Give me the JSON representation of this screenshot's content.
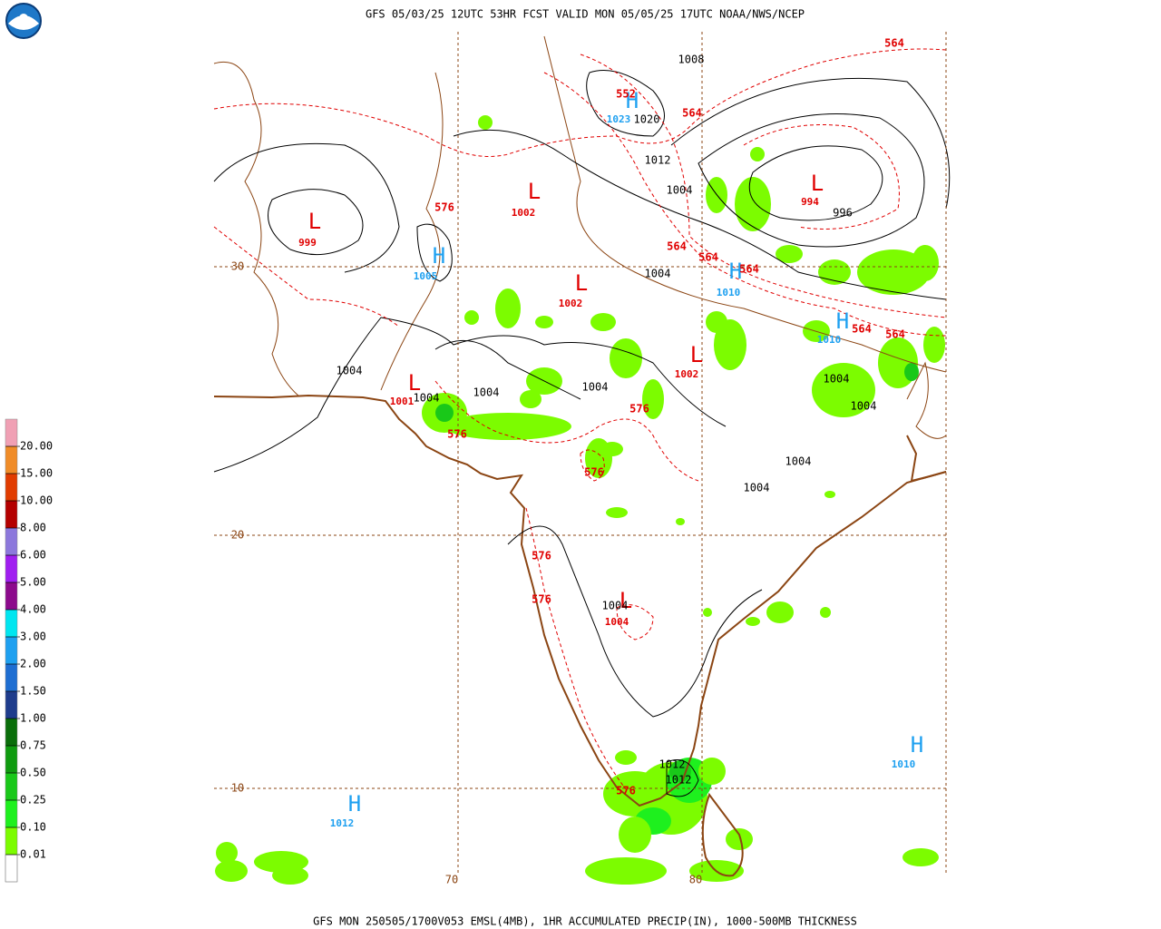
{
  "header": {
    "title": "GFS 05/03/25 12UTC 53HR FCST VALID MON 05/05/25 17UTC NOAA/NWS/NCEP"
  },
  "footer": {
    "caption": "GFS MON 250505/1700V053 EMSL(4MB), 1HR ACCUMULATED PRECIP(IN), 1000-500MB THICKNESS"
  },
  "legend": {
    "base_color": "#ffffff",
    "bins": [
      {
        "label": "0.01",
        "color": "#7cfc00"
      },
      {
        "label": "0.10",
        "color": "#1ef01e"
      },
      {
        "label": "0.25",
        "color": "#19c819"
      },
      {
        "label": "0.50",
        "color": "#0f9b0f"
      },
      {
        "label": "0.75",
        "color": "#0a6e0a"
      },
      {
        "label": "1.00",
        "color": "#1e3c8c"
      },
      {
        "label": "1.50",
        "color": "#1e6ed2"
      },
      {
        "label": "2.00",
        "color": "#1ea0f0"
      },
      {
        "label": "3.00",
        "color": "#00e6f0"
      },
      {
        "label": "4.00",
        "color": "#8c0a8c"
      },
      {
        "label": "5.00",
        "color": "#a01ef0"
      },
      {
        "label": "6.00",
        "color": "#8c78dc"
      },
      {
        "label": "8.00",
        "color": "#b40000"
      },
      {
        "label": "10.00",
        "color": "#e13c00"
      },
      {
        "label": "15.00",
        "color": "#f08c28"
      },
      {
        "label": "20.00",
        "color": "#f0a0b4"
      }
    ]
  },
  "grid": {
    "latitudes": [
      "30",
      "20",
      "10"
    ],
    "longitudes": [
      "70",
      "80"
    ]
  },
  "centers": [
    {
      "symbol": "L",
      "value": "999"
    },
    {
      "symbol": "H",
      "value": "1005"
    },
    {
      "symbol": "L",
      "value": "1002"
    },
    {
      "symbol": "L",
      "value": "1002"
    },
    {
      "symbol": "L",
      "value": "1002"
    },
    {
      "symbol": "L",
      "value": "994"
    },
    {
      "symbol": "H",
      "value": "1010"
    },
    {
      "symbol": "H",
      "value": "1010"
    },
    {
      "symbol": "H",
      "value": "1023"
    },
    {
      "symbol": "L",
      "value": "1001"
    },
    {
      "symbol": "L",
      "value": "1004"
    },
    {
      "symbol": "H",
      "value": "1010"
    },
    {
      "symbol": "H",
      "value": "1012"
    }
  ],
  "isobar_labels": [
    "1020",
    "1012",
    "1004",
    "996",
    "1004",
    "1004",
    "1004",
    "1004",
    "1004",
    "1004",
    "1004",
    "1004",
    "1004",
    "1004",
    "1012",
    "1012",
    "1008"
  ],
  "thickness_labels": [
    "564",
    "552",
    "564",
    "576",
    "564",
    "564",
    "564",
    "564",
    "564",
    "576",
    "576",
    "576",
    "576",
    "576",
    "576"
  ]
}
